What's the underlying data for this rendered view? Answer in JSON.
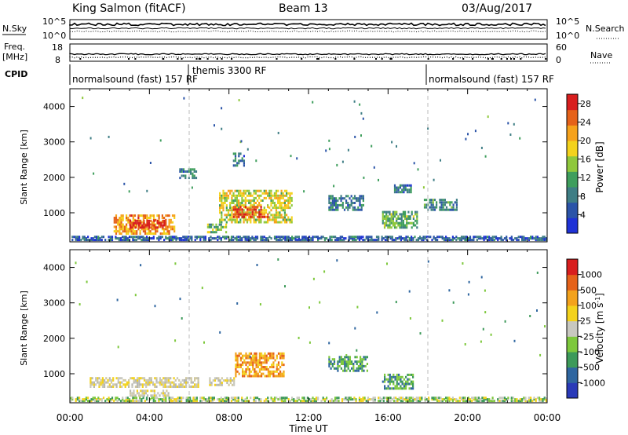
{
  "header": {
    "station": "King Salmon (fitACF)",
    "beam": "Beam 13",
    "date": "03/Aug/2017"
  },
  "status_panels": {
    "nsky_label": "N.Sky",
    "nsky_ticks": [
      "10^5",
      "10^0"
    ],
    "nsearch_label": "N.Search",
    "nsearch_ticks": [
      "10^5",
      "10^0"
    ],
    "freq_label_1": "Freq.",
    "freq_label_2": "[MHz]",
    "freq_ticks": [
      "18",
      "8"
    ],
    "nave_label": "Nave",
    "nave_ticks": [
      "60",
      "0"
    ],
    "cpid_label": "CPID",
    "cpid_segments": [
      {
        "text": "normalsound (fast) 157 RF",
        "start_h": 0
      },
      {
        "text": "themis 3300 RF",
        "start_h": 6
      },
      {
        "text": "normalsound (fast) 157 RF",
        "start_h": 18
      }
    ]
  },
  "chart_data": [
    {
      "type": "heatmap",
      "name": "power",
      "ylabel": "Slant Range [km]",
      "xlabel": "",
      "ylim": [
        180,
        4500
      ],
      "xlim": [
        0,
        24
      ],
      "y_ticks": [
        "1000",
        "2000",
        "3000",
        "4000"
      ],
      "y_tick_values": [
        1000,
        2000,
        3000,
        4000
      ],
      "colorbar": {
        "label": "Power [dB]",
        "ticks": [
          "4",
          "8",
          "12",
          "16",
          "20",
          "24",
          "28"
        ],
        "range": [
          0,
          30
        ],
        "colors": [
          "#1f32d6",
          "#2b54a8",
          "#3f7e85",
          "#3f9e5d",
          "#8fc83c",
          "#f3d21c",
          "#f6a21c",
          "#e5621a",
          "#d81e1e"
        ]
      },
      "regions": [
        {
          "t0": 2.2,
          "t1": 5.3,
          "r0": 380,
          "r1": 950,
          "level": 22
        },
        {
          "t0": 3.0,
          "t1": 4.8,
          "r0": 550,
          "r1": 800,
          "level": 28
        },
        {
          "t0": 5.5,
          "t1": 6.4,
          "r0": 1950,
          "r1": 2250,
          "level": 8
        },
        {
          "t0": 6.9,
          "t1": 7.9,
          "r0": 420,
          "r1": 700,
          "level": 14
        },
        {
          "t0": 7.5,
          "t1": 11.2,
          "r0": 700,
          "r1": 1650,
          "level": 17
        },
        {
          "t0": 8.2,
          "t1": 10.0,
          "r0": 850,
          "r1": 1200,
          "level": 26
        },
        {
          "t0": 8.2,
          "t1": 8.8,
          "r0": 2300,
          "r1": 2700,
          "level": 8
        },
        {
          "t0": 13.0,
          "t1": 14.8,
          "r0": 1050,
          "r1": 1500,
          "level": 8
        },
        {
          "t0": 15.7,
          "t1": 17.5,
          "r0": 550,
          "r1": 1050,
          "level": 12
        },
        {
          "t0": 16.3,
          "t1": 17.2,
          "r0": 1550,
          "r1": 1800,
          "level": 8
        },
        {
          "t0": 17.8,
          "t1": 19.5,
          "r0": 1050,
          "r1": 1400,
          "level": 9
        },
        {
          "t0": 0.0,
          "t1": 24.0,
          "r0": 200,
          "r1": 330,
          "level": 6
        }
      ]
    },
    {
      "type": "heatmap",
      "name": "velocity",
      "ylabel": "Slant Range [km]",
      "xlabel": "Time UT",
      "ylim": [
        180,
        4500
      ],
      "xlim": [
        0,
        24
      ],
      "y_ticks": [
        "1000",
        "2000",
        "3000",
        "4000"
      ],
      "y_tick_values": [
        1000,
        2000,
        3000,
        4000
      ],
      "x_ticks": [
        "00:00",
        "04:00",
        "08:00",
        "12:00",
        "16:00",
        "20:00",
        "00:00"
      ],
      "x_tick_values": [
        0,
        4,
        8,
        12,
        16,
        20,
        24
      ],
      "colorbar": {
        "label": "Velocity [m s^-1]",
        "ticks": [
          "1000",
          "500",
          "100",
          "25",
          "-25",
          "-100",
          "-500",
          "-1000"
        ],
        "colors": [
          "#2a3ab8",
          "#2f66a0",
          "#3d9a5a",
          "#7dc83c",
          "#c8c8c0",
          "#f3d21c",
          "#f3a21c",
          "#e5621a",
          "#d81e1e"
        ]
      },
      "regions": [
        {
          "t0": 1.0,
          "t1": 6.5,
          "r0": 600,
          "r1": 900,
          "level": "grey"
        },
        {
          "t0": 3.0,
          "t1": 5.0,
          "r0": 350,
          "r1": 550,
          "level": "grey"
        },
        {
          "t0": 8.3,
          "t1": 10.8,
          "r0": 900,
          "r1": 1600,
          "level": "orange"
        },
        {
          "t0": 7.0,
          "t1": 8.3,
          "r0": 650,
          "r1": 900,
          "level": "grey"
        },
        {
          "t0": 13.0,
          "t1": 15.0,
          "r0": 1050,
          "r1": 1500,
          "level": "green"
        },
        {
          "t0": 15.7,
          "t1": 17.3,
          "r0": 550,
          "r1": 1000,
          "level": "green"
        },
        {
          "t0": 0.0,
          "t1": 24.0,
          "r0": 200,
          "r1": 330,
          "level": "lightgreen"
        }
      ]
    }
  ]
}
